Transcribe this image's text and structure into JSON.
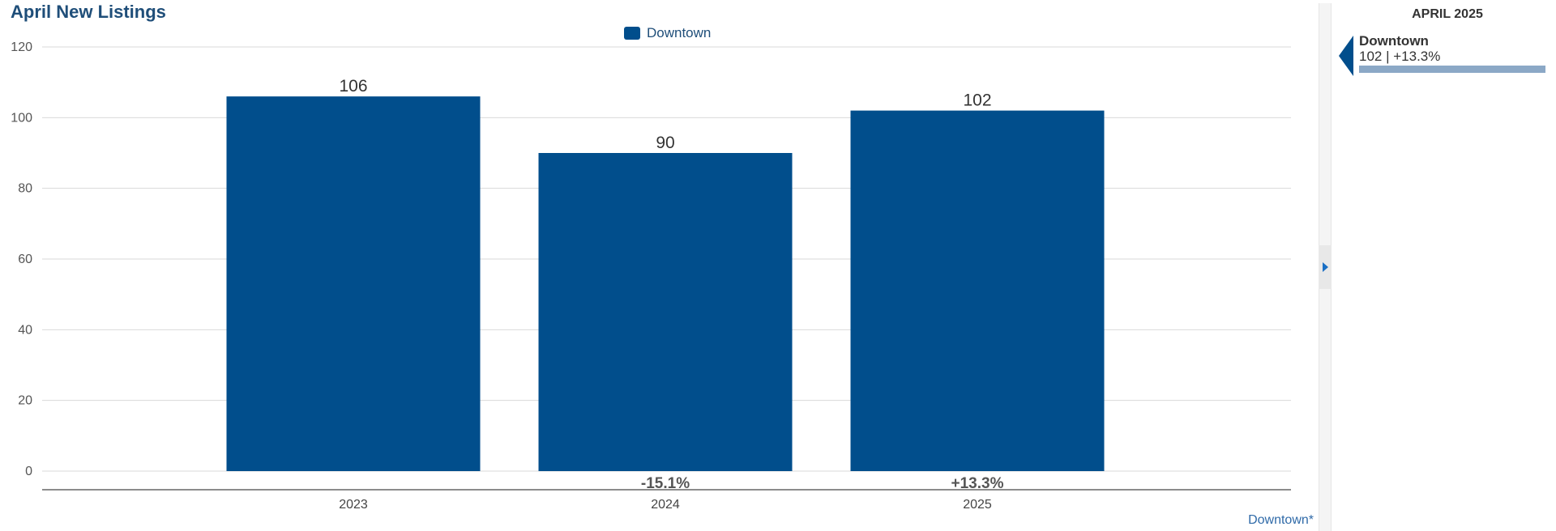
{
  "title": "April New Listings",
  "legend": {
    "label": "Downtown",
    "color": "#014e8c"
  },
  "footnote": "Downtown*",
  "side_panel": {
    "header": "APRIL 2025",
    "item_name": "Downtown",
    "item_detail": "102 | +13.3%",
    "bar_fraction": 1.0,
    "bar_color": "#8ba8c6"
  },
  "chart_data": {
    "type": "bar",
    "title": "April New Listings",
    "xlabel": "",
    "ylabel": "",
    "categories": [
      "2023",
      "2024",
      "2025"
    ],
    "series": [
      {
        "name": "Downtown",
        "values": [
          106,
          90,
          102
        ],
        "color": "#014e8c"
      }
    ],
    "data_labels": [
      "106",
      "90",
      "102"
    ],
    "change_labels": [
      "",
      "-15.1%",
      "+13.3%"
    ],
    "yticks": [
      0,
      20,
      40,
      60,
      80,
      100,
      120
    ],
    "ylim": [
      0,
      120
    ],
    "grid": true,
    "legend_position": "top-center"
  }
}
